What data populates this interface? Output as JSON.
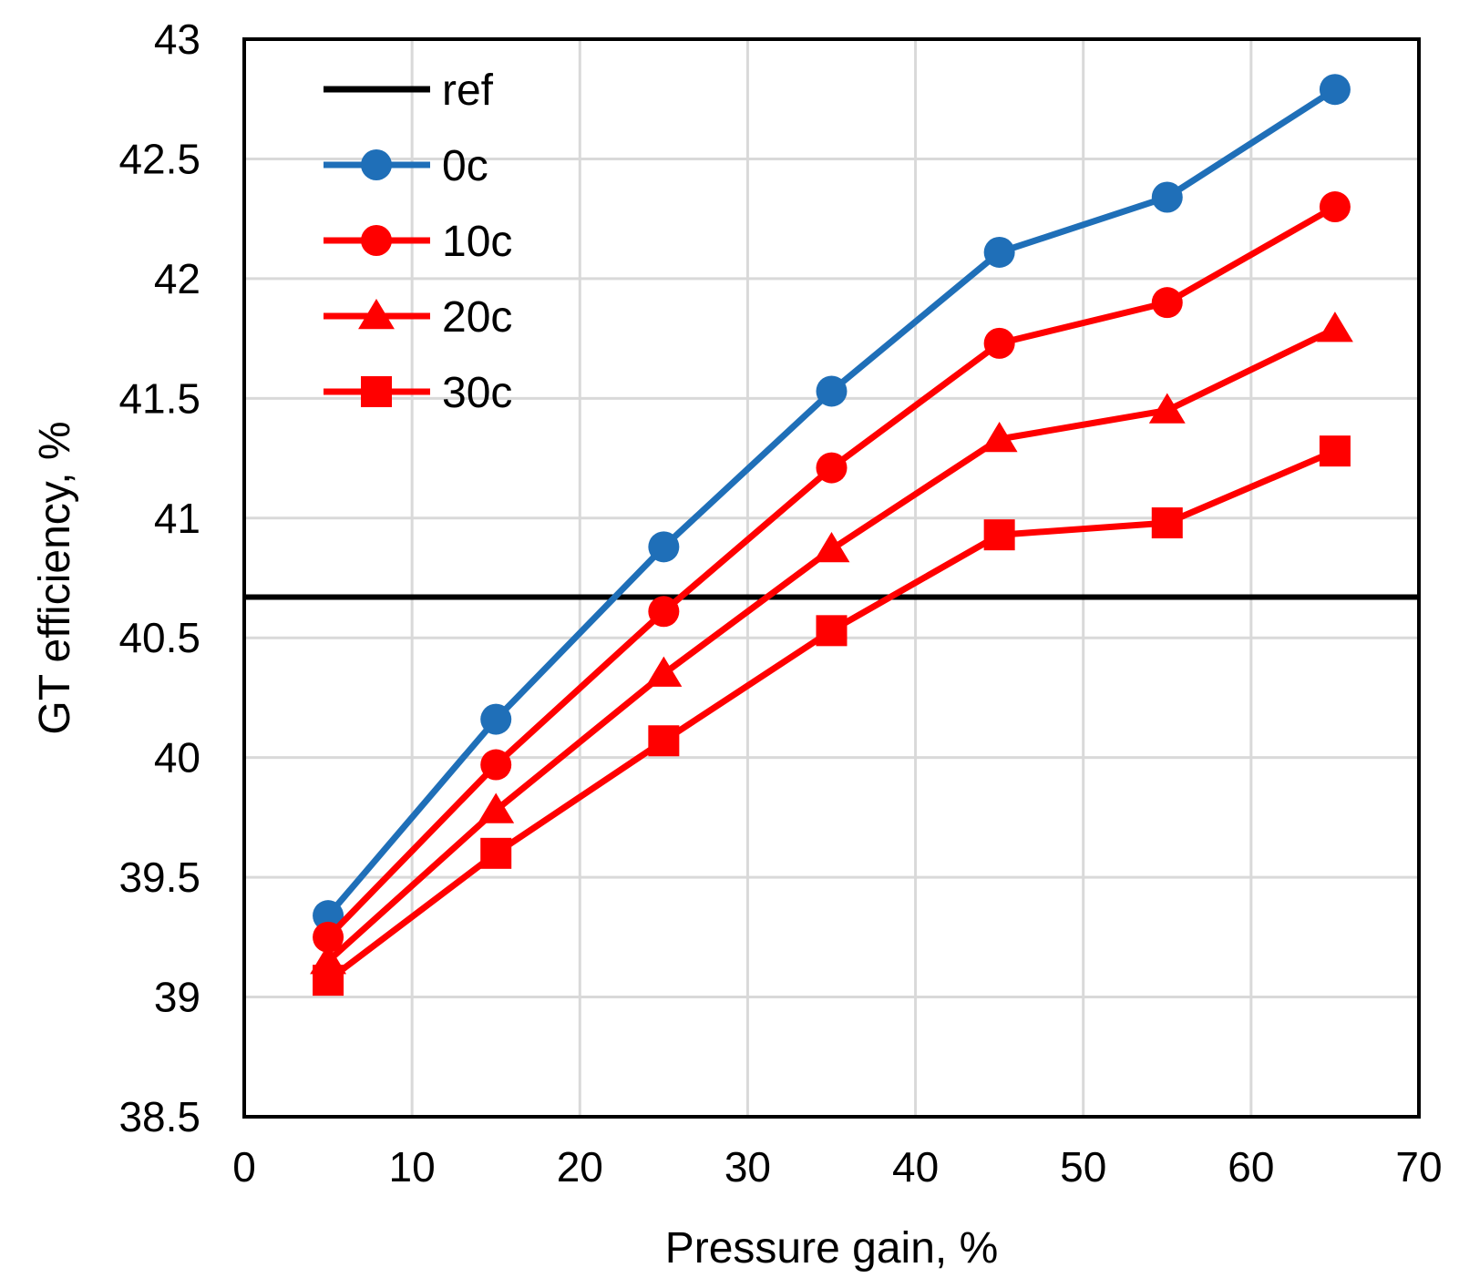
{
  "chart_data": {
    "type": "line",
    "title": "",
    "xlabel": "Pressure gain, %",
    "ylabel": "GT efficiency, %",
    "xlim": [
      0,
      70
    ],
    "ylim": [
      38.5,
      43
    ],
    "xticks": [
      0,
      10,
      20,
      30,
      40,
      50,
      60,
      70
    ],
    "yticks": [
      38.5,
      39,
      39.5,
      40,
      40.5,
      41,
      41.5,
      42,
      42.5,
      43
    ],
    "xtick_labels": [
      "0",
      "10",
      "20",
      "30",
      "40",
      "50",
      "60",
      "70"
    ],
    "ytick_labels": [
      "38.5",
      "39",
      "39.5",
      "40",
      "40.5",
      "41",
      "41.5",
      "42",
      "42.5",
      "43"
    ],
    "grid": true,
    "legend_position": "top-left",
    "x": [
      5,
      15,
      25,
      35,
      45,
      55,
      65
    ],
    "reference": {
      "name": "ref",
      "value": 40.67,
      "color": "#000000"
    },
    "series": [
      {
        "name": "0c",
        "marker": "circle",
        "color": "#1f6fb8",
        "values": [
          39.34,
          40.16,
          40.88,
          41.53,
          42.11,
          42.34,
          42.79
        ]
      },
      {
        "name": "10c",
        "marker": "circle",
        "color": "#ff0000",
        "values": [
          39.25,
          39.97,
          40.61,
          41.21,
          41.73,
          41.9,
          42.3
        ]
      },
      {
        "name": "20c",
        "marker": "triangle",
        "color": "#ff0000",
        "values": [
          39.15,
          39.78,
          40.35,
          40.87,
          41.33,
          41.45,
          41.79
        ]
      },
      {
        "name": "30c",
        "marker": "square",
        "color": "#ff0000",
        "values": [
          39.07,
          39.6,
          40.07,
          40.53,
          40.93,
          40.98,
          41.28
        ]
      }
    ]
  }
}
